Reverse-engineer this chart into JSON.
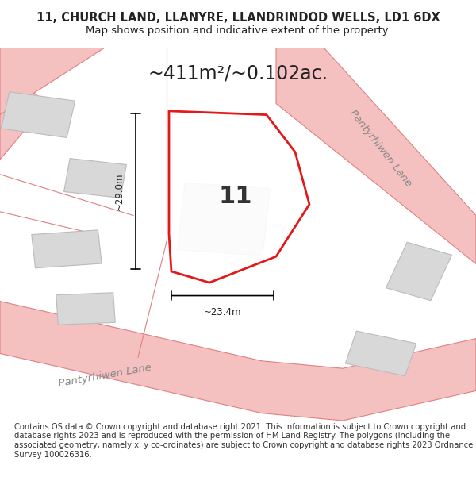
{
  "title": "11, CHURCH LAND, LLANYRE, LLANDRINDOD WELLS, LD1 6DX",
  "subtitle": "Map shows position and indicative extent of the property.",
  "area_text": "~411m²/~0.102ac.",
  "plot_number": "11",
  "dim_width": "~23.4m",
  "dim_height": "~29.0m",
  "footer": "Contains OS data © Crown copyright and database right 2021. This information is subject to Crown copyright and database rights 2023 and is reproduced with the permission of HM Land Registry. The polygons (including the associated geometry, namely x, y co-ordinates) are subject to Crown copyright and database rights 2023 Ordnance Survey 100026316.",
  "bg_color": "#ffffff",
  "map_bg": "#ffffff",
  "road_color": "#f5c0c0",
  "road_stroke": "#e08080",
  "building_fill": "#d8d8d8",
  "building_stroke": "#bbbbbb",
  "plot_fill": "#ffffff",
  "plot_stroke": "#e00000",
  "lane_text_color": "#888888",
  "dim_color": "#222222",
  "title_color": "#222222",
  "footer_color": "#333333"
}
